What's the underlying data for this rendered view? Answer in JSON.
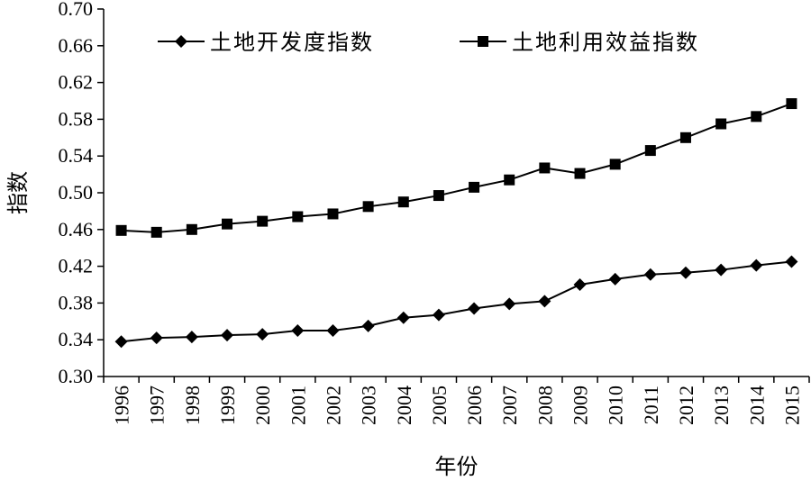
{
  "chart_data": {
    "type": "line",
    "x": [
      "1996",
      "1997",
      "1998",
      "1999",
      "2000",
      "2001",
      "2002",
      "2003",
      "2004",
      "2005",
      "2006",
      "2007",
      "2008",
      "2009",
      "2010",
      "2011",
      "2012",
      "2013",
      "2014",
      "2015"
    ],
    "series": [
      {
        "name": "土地开发度指数",
        "marker": "diamond",
        "values": [
          0.338,
          0.342,
          0.343,
          0.345,
          0.346,
          0.35,
          0.35,
          0.355,
          0.364,
          0.367,
          0.374,
          0.379,
          0.382,
          0.4,
          0.406,
          0.411,
          0.413,
          0.416,
          0.421,
          0.425
        ]
      },
      {
        "name": "土地利用效益指数",
        "marker": "square",
        "values": [
          0.459,
          0.457,
          0.46,
          0.466,
          0.469,
          0.474,
          0.477,
          0.485,
          0.49,
          0.497,
          0.506,
          0.514,
          0.527,
          0.521,
          0.531,
          0.546,
          0.56,
          0.575,
          0.583,
          0.597
        ]
      }
    ],
    "xlabel": "年份",
    "ylabel": "指数",
    "ylim": [
      0.3,
      0.7
    ],
    "yticks": [
      "0.30",
      "0.34",
      "0.38",
      "0.42",
      "0.46",
      "0.50",
      "0.54",
      "0.58",
      "0.62",
      "0.66",
      "0.70"
    ],
    "grid": false,
    "legend_position": "top"
  },
  "colors": {
    "line": "#000000",
    "background": "#ffffff"
  }
}
